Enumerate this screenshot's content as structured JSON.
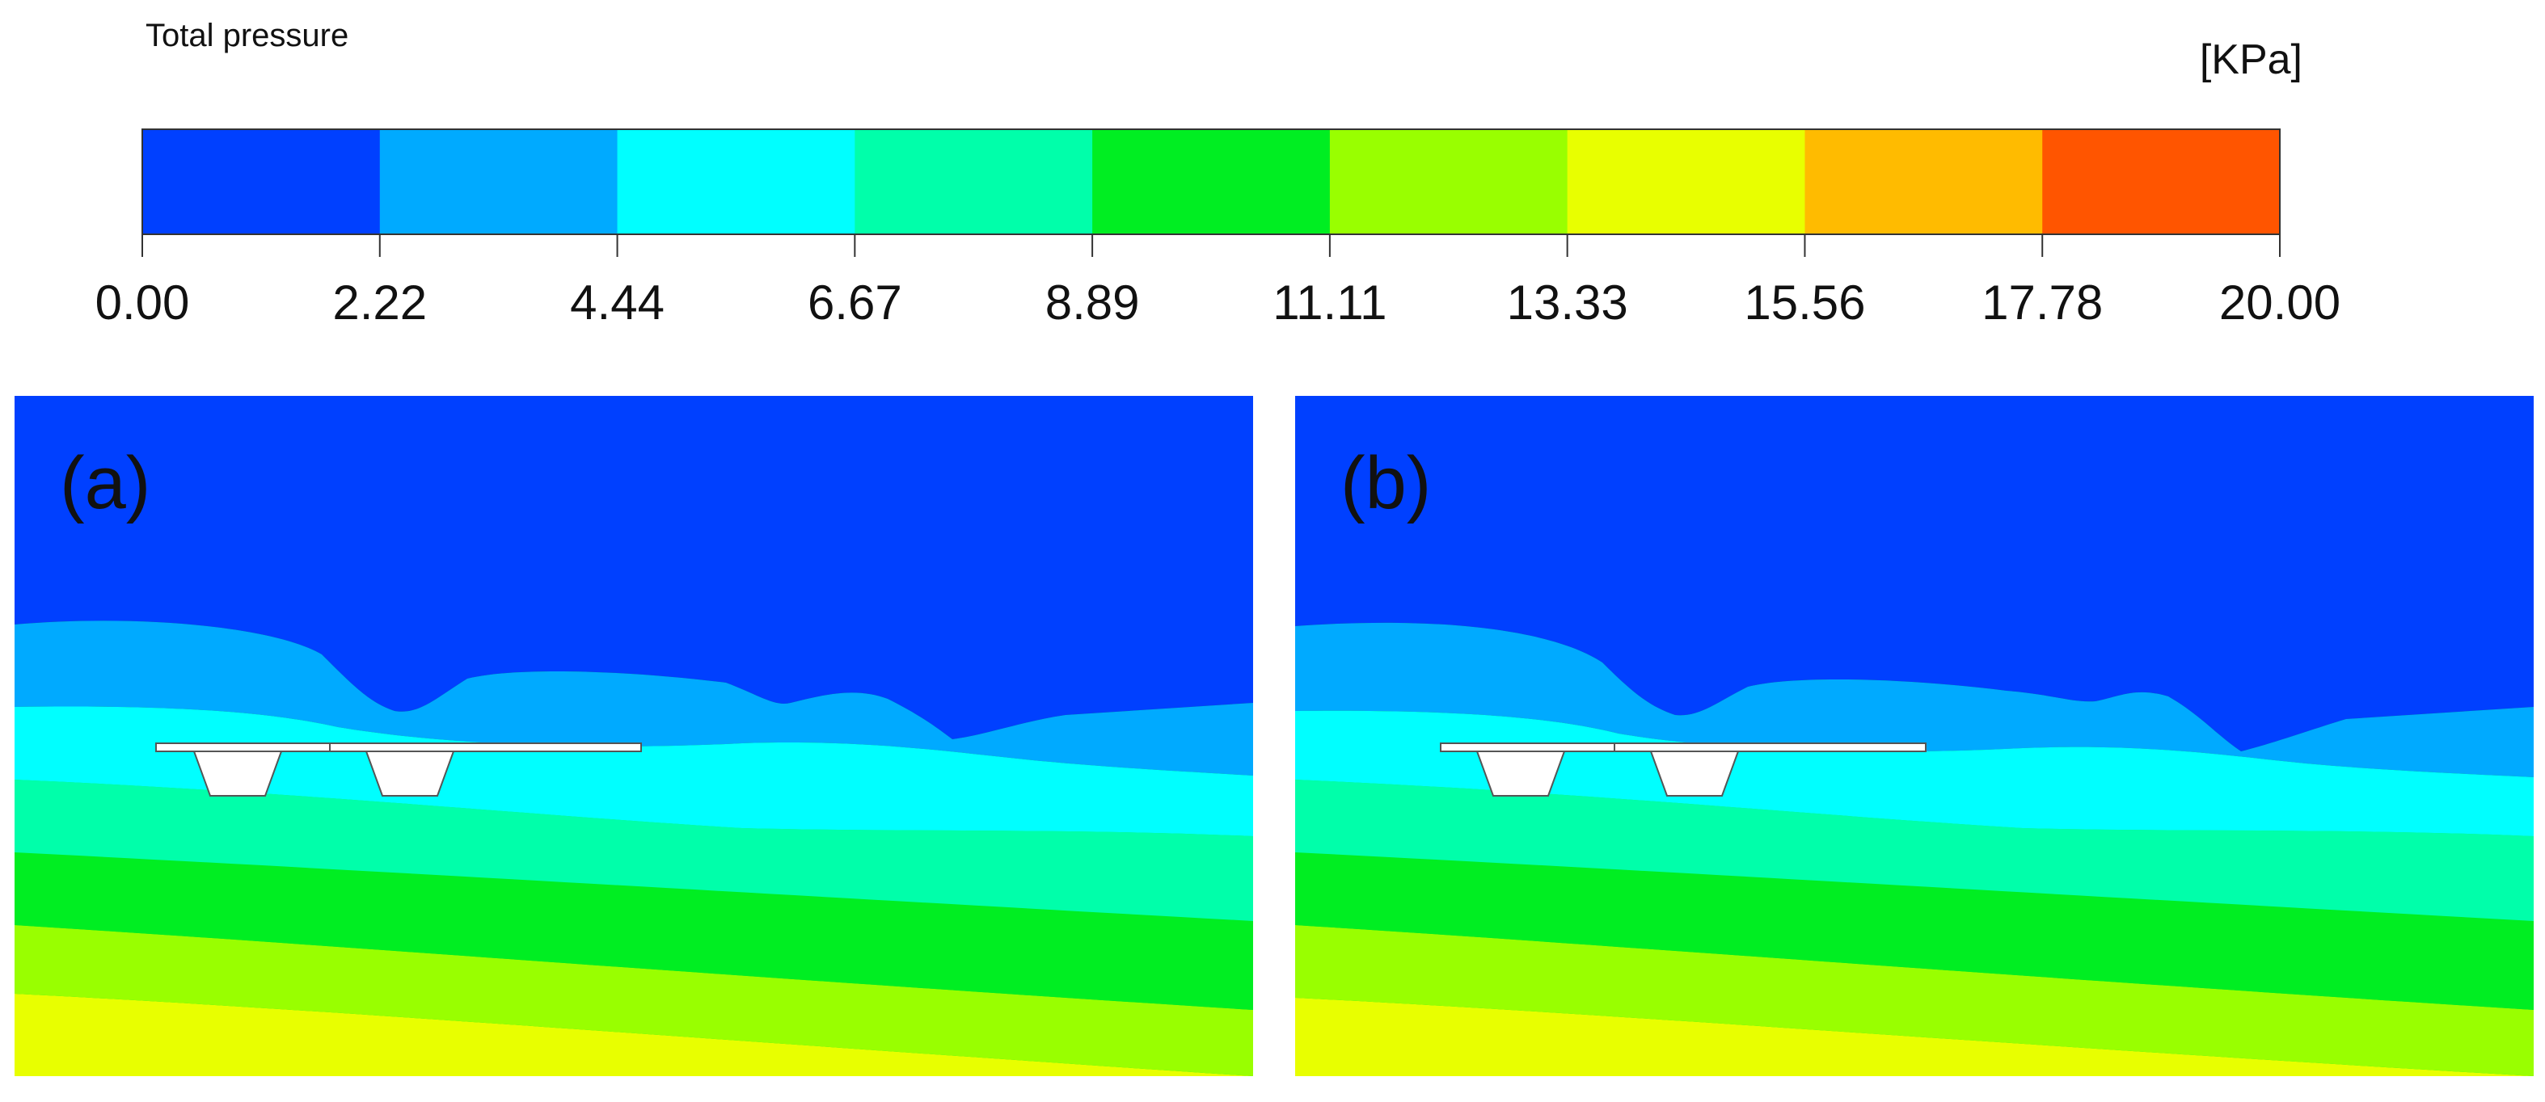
{
  "legend": {
    "title": "Total pressure",
    "unit": "[KPa]",
    "ticks": [
      "0.00",
      "2.22",
      "4.44",
      "6.67",
      "8.89",
      "11.11",
      "13.33",
      "15.56",
      "17.78",
      "20.00"
    ],
    "colors": [
      "#0040ff",
      "#00aaff",
      "#00ffff",
      "#00ffaa",
      "#00ee22",
      "#99ff00",
      "#e8ff00",
      "#ffbb00",
      "#ff5500"
    ]
  },
  "panels": [
    {
      "label": "(a)"
    },
    {
      "label": "(b)"
    }
  ]
}
